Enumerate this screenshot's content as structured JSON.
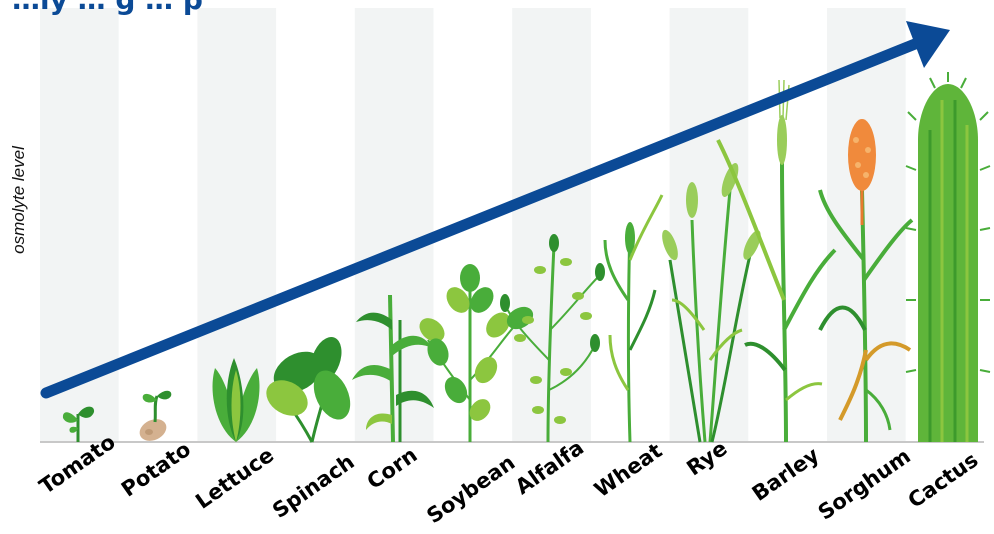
{
  "title": "…ly … g … p",
  "y_axis_label": "osmolyte level",
  "colors": {
    "arrow": "#0b4a96",
    "band": "#f2f4f4",
    "axis": "#c8c8c8",
    "leaf": "#49ad3a",
    "leaf_dark": "#2e8f2e",
    "leaf_light": "#8cc63f",
    "grain": "#9acd5a",
    "sorghum_head": "#f08a3c",
    "potato": "#d4b190",
    "cactus": "#5fb53a"
  },
  "plants": [
    {
      "label": "Tomato",
      "icon": "tomato-seedling-icon"
    },
    {
      "label": "Potato",
      "icon": "potato-sprout-icon"
    },
    {
      "label": "Lettuce",
      "icon": "lettuce-icon"
    },
    {
      "label": "Spinach",
      "icon": "spinach-icon"
    },
    {
      "label": "Corn",
      "icon": "corn-plant-icon"
    },
    {
      "label": "Soybean",
      "icon": "soybean-plant-icon"
    },
    {
      "label": "Alfalfa",
      "icon": "alfalfa-plant-icon"
    },
    {
      "label": "Wheat",
      "icon": "wheat-plant-icon"
    },
    {
      "label": "Rye",
      "icon": "rye-plant-icon"
    },
    {
      "label": "Barley",
      "icon": "barley-plant-icon"
    },
    {
      "label": "Sorghum",
      "icon": "sorghum-plant-icon"
    },
    {
      "label": "Cactus",
      "icon": "cactus-icon"
    }
  ]
}
